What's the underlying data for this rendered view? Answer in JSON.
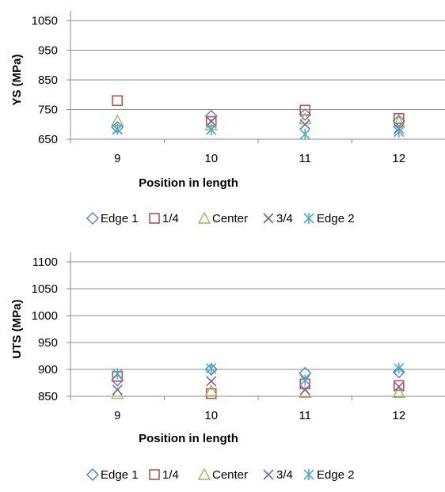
{
  "chart_data": [
    {
      "type": "scatter",
      "title": "",
      "xlabel": "Position in length",
      "ylabel": "YS (MPa)",
      "categories": [
        "9",
        "10",
        "11",
        "12"
      ],
      "ylim": [
        650,
        1050
      ],
      "yticks": [
        650,
        750,
        850,
        950,
        1050
      ],
      "grid": "horizontal",
      "legend_position": "bottom",
      "series": [
        {
          "name": "Edge 1",
          "marker": "diamond",
          "color": "#4F81BD",
          "values": [
            690,
            728,
            733,
            712
          ]
        },
        {
          "name": "1/4",
          "marker": "square",
          "color": "#C0504D",
          "values": [
            780,
            710,
            748,
            720
          ]
        },
        {
          "name": "Center",
          "marker": "triangle",
          "color": "#9BBB59",
          "values": [
            712,
            698,
            718,
            708
          ]
        },
        {
          "name": "3/4",
          "marker": "x",
          "color": "#8064A2",
          "values": [
            683,
            710,
            700,
            685
          ]
        },
        {
          "name": "Edge 2",
          "marker": "asterisk",
          "color": "#4BACC6",
          "values": [
            683,
            682,
            667,
            675
          ]
        }
      ]
    },
    {
      "type": "scatter",
      "title": "",
      "xlabel": "Position in length",
      "ylabel": "UTS (MPa)",
      "categories": [
        "9",
        "10",
        "11",
        "12"
      ],
      "ylim": [
        850,
        1100
      ],
      "yticks": [
        850,
        900,
        950,
        1000,
        1050,
        1100
      ],
      "grid": "horizontal",
      "legend_position": "bottom",
      "series": [
        {
          "name": "Edge 1",
          "marker": "diamond",
          "color": "#4F81BD",
          "values": [
            880,
            900,
            893,
            895
          ]
        },
        {
          "name": "1/4",
          "marker": "square",
          "color": "#C0504D",
          "values": [
            887,
            855,
            873,
            870
          ]
        },
        {
          "name": "Center",
          "marker": "triangle",
          "color": "#9BBB59",
          "values": [
            855,
            860,
            857,
            857
          ]
        },
        {
          "name": "3/4",
          "marker": "x",
          "color": "#8064A2",
          "values": [
            862,
            878,
            862,
            868
          ]
        },
        {
          "name": "Edge 2",
          "marker": "asterisk",
          "color": "#4BACC6",
          "values": [
            892,
            902,
            880,
            902
          ]
        }
      ]
    }
  ]
}
